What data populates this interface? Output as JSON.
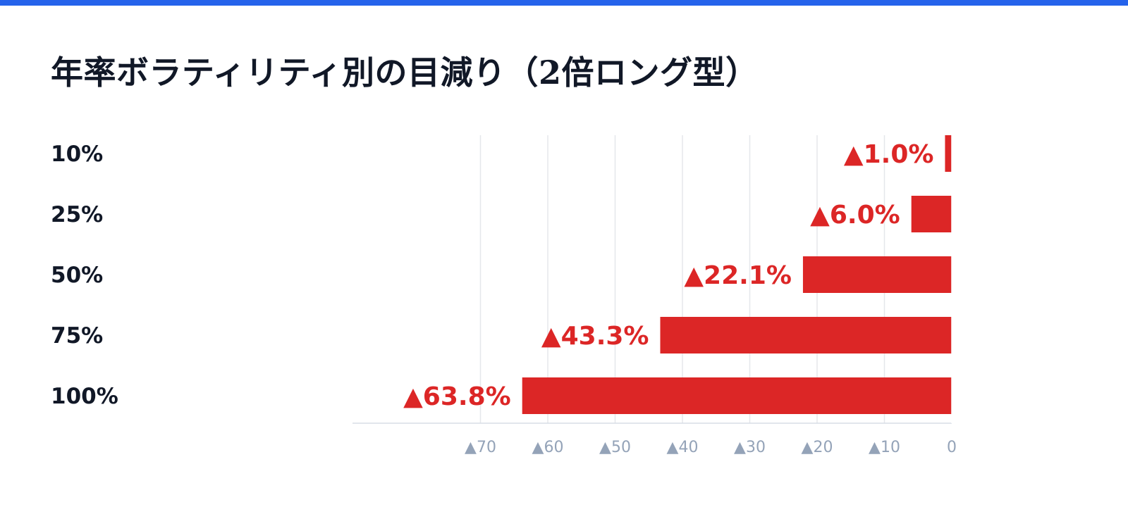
{
  "chart_data": {
    "type": "bar",
    "orientation": "horizontal",
    "title": "年率ボラティリティ別の目減り（2倍ロング型）",
    "categories": [
      "10%",
      "25%",
      "50%",
      "75%",
      "100%"
    ],
    "values": [
      -1.0,
      -6.0,
      -22.1,
      -43.3,
      -63.8
    ],
    "value_labels": [
      "▲1.0%",
      "▲6.0%",
      "▲22.1%",
      "▲43.3%",
      "▲63.8%"
    ],
    "x_ticks": [
      {
        "value": -70,
        "label": "▲70"
      },
      {
        "value": -60,
        "label": "▲60"
      },
      {
        "value": -50,
        "label": "▲50"
      },
      {
        "value": -40,
        "label": "▲40"
      },
      {
        "value": -30,
        "label": "▲30"
      },
      {
        "value": -20,
        "label": "▲20"
      },
      {
        "value": -10,
        "label": "▲10"
      },
      {
        "value": 0,
        "label": "0"
      }
    ],
    "xlim": [
      -70,
      0
    ],
    "xlabel": "",
    "ylabel": "",
    "grid": true,
    "colors": {
      "bar": "#dc2626",
      "value_label": "#dc2626",
      "category_label": "#111827",
      "tick_label": "#94a3b8",
      "grid": "#e5e7eb",
      "accent_bar": "#2563eb"
    }
  }
}
